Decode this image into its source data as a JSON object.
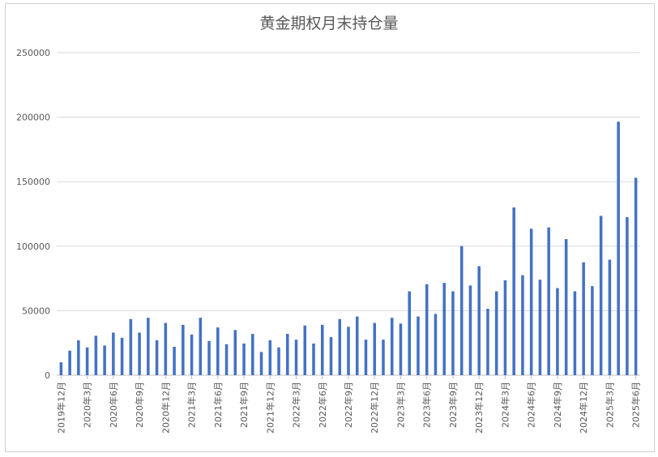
{
  "chart_data": {
    "type": "bar",
    "title": "黄金期权月末持仓量",
    "xlabel": "",
    "ylabel": "",
    "ylim": [
      0,
      250000
    ],
    "yticks": [
      0,
      50000,
      100000,
      150000,
      200000,
      250000
    ],
    "grid": true,
    "bar_color": "#4472c4",
    "categories": [
      "2019年12月",
      "2020年1月",
      "2020年2月",
      "2020年3月",
      "2020年4月",
      "2020年5月",
      "2020年6月",
      "2020年7月",
      "2020年8月",
      "2020年9月",
      "2020年10月",
      "2020年11月",
      "2020年12月",
      "2021年1月",
      "2021年2月",
      "2021年3月",
      "2021年4月",
      "2021年5月",
      "2021年6月",
      "2021年7月",
      "2021年8月",
      "2021年9月",
      "2021年10月",
      "2021年11月",
      "2021年12月",
      "2022年1月",
      "2022年2月",
      "2022年3月",
      "2022年4月",
      "2022年5月",
      "2022年6月",
      "2022年7月",
      "2022年8月",
      "2022年9月",
      "2022年10月",
      "2022年11月",
      "2022年12月",
      "2023年1月",
      "2023年2月",
      "2023年3月",
      "2023年4月",
      "2023年5月",
      "2023年6月",
      "2023年7月",
      "2023年8月",
      "2023年9月",
      "2023年10月",
      "2023年11月",
      "2023年12月",
      "2024年1月",
      "2024年2月",
      "2024年3月",
      "2024年4月",
      "2024年5月",
      "2024年6月",
      "2024年7月",
      "2024年8月",
      "2024年9月",
      "2024年10月",
      "2024年11月",
      "2024年12月",
      "2025年1月",
      "2025年2月",
      "2025年3月",
      "2025年4月",
      "2025年5月",
      "2025年6月"
    ],
    "tick_labels": [
      "2019年12月",
      "2020年3月",
      "2020年6月",
      "2020年9月",
      "2020年12月",
      "2021年3月",
      "2021年6月",
      "2021年9月",
      "2021年12月",
      "2022年3月",
      "2022年6月",
      "2022年9月",
      "2022年12月",
      "2023年3月",
      "2023年6月",
      "2023年9月",
      "2023年12月",
      "2024年3月",
      "2024年6月",
      "2024年9月",
      "2024年12月",
      "2025年3月",
      "2025年6月"
    ],
    "values": [
      10000,
      19000,
      27000,
      21500,
      30500,
      23000,
      33000,
      29000,
      43500,
      33000,
      44500,
      27000,
      40500,
      22000,
      39000,
      31500,
      44500,
      26500,
      37000,
      24000,
      35000,
      24500,
      32000,
      18000,
      27000,
      21500,
      32000,
      27500,
      38500,
      24500,
      39000,
      29500,
      43500,
      37500,
      45500,
      27500,
      40500,
      27500,
      44500,
      40000,
      65000,
      45500,
      70500,
      47500,
      71500,
      65000,
      100000,
      69500,
      84500,
      51500,
      65000,
      73500,
      130000,
      77500,
      113500,
      74000,
      114500,
      67500,
      105500,
      65000,
      87500,
      69000,
      123500,
      89500,
      196500,
      122500,
      153000
    ]
  }
}
